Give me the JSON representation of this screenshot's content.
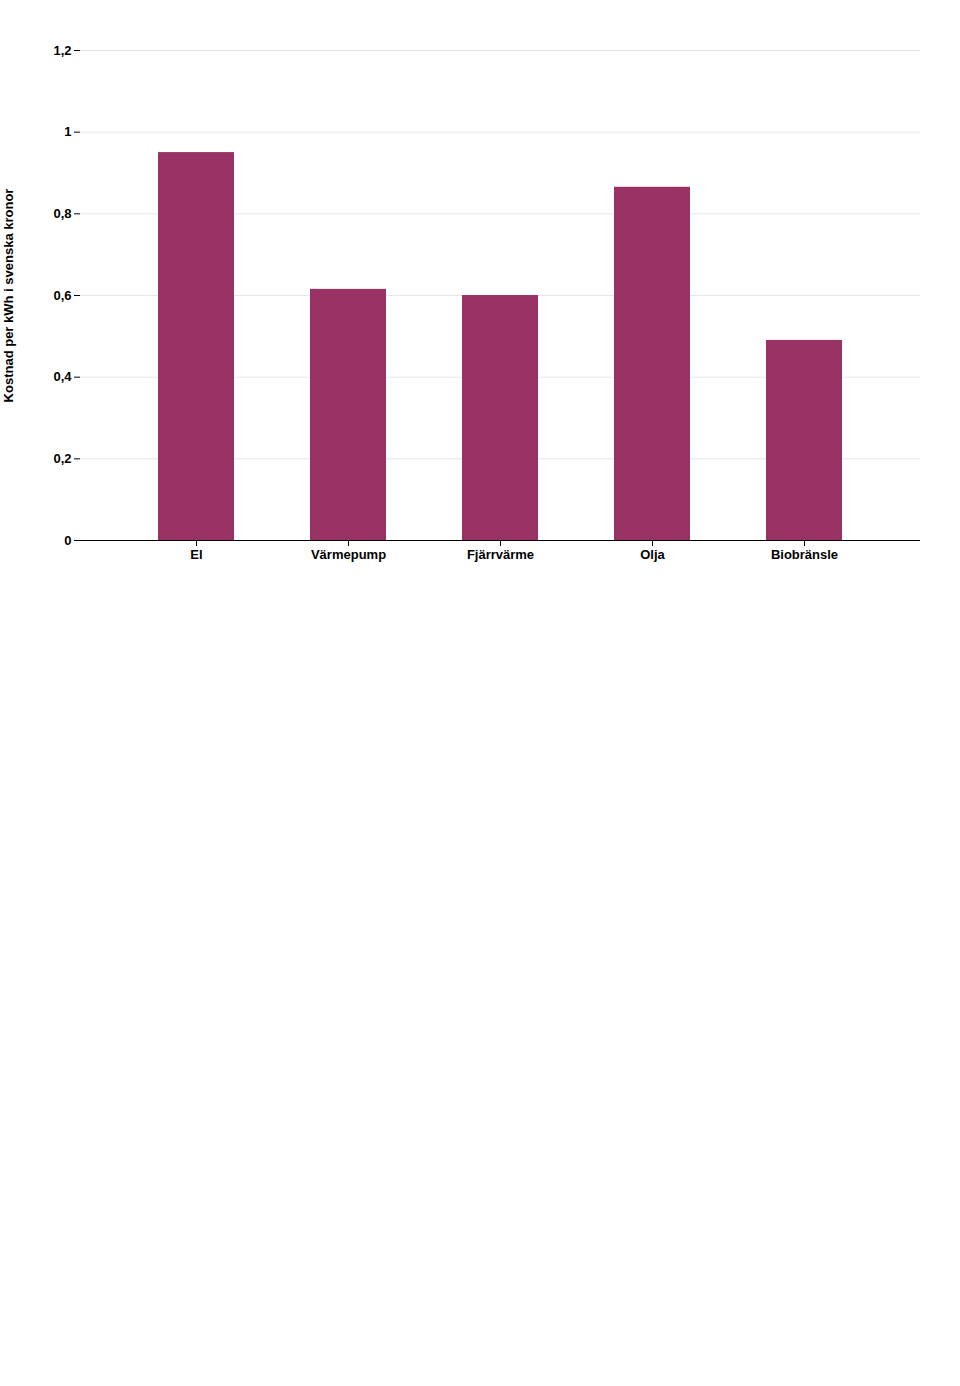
{
  "chart_data": {
    "type": "bar",
    "categories": [
      "El",
      "Värmepump",
      "Fjärrvärme",
      "Olja",
      "Biobränsle"
    ],
    "values": [
      0.95,
      0.615,
      0.6,
      0.865,
      0.49
    ],
    "color": "#993366",
    "ylabel": "Kostnad per kWh i svenska kronor",
    "ylim": [
      0,
      1.2
    ],
    "yticks": [
      0,
      {
        "value": 0.2,
        "label": "0,2"
      },
      {
        "value": 0.4,
        "label": "0,4"
      },
      {
        "value": 0.6,
        "label": "0,6"
      },
      {
        "value": 0.8,
        "label": "0,8"
      },
      1,
      {
        "value": 1.2,
        "label": "1,2"
      }
    ],
    "grid": true
  }
}
